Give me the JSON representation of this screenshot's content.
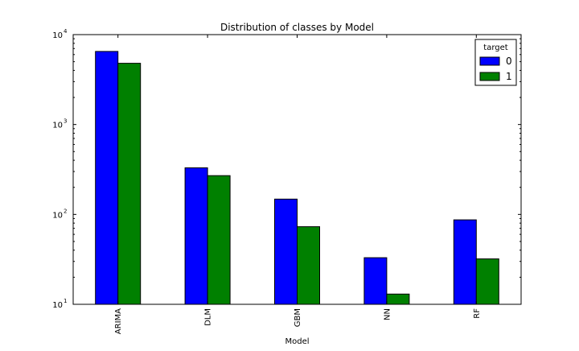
{
  "chart_data": {
    "type": "bar",
    "title": "Distribution of classes by Model",
    "xlabel": "Model",
    "ylabel": "",
    "categories": [
      "ARIMA",
      "DLM",
      "GBM",
      "NN",
      "RF"
    ],
    "series": [
      {
        "name": "0",
        "values": [
          6500,
          330,
          148,
          33,
          87
        ],
        "color": "#0000ff"
      },
      {
        "name": "1",
        "values": [
          4800,
          270,
          73,
          13,
          32
        ],
        "color": "#008000"
      }
    ],
    "y_scale": "log",
    "ylim": [
      10,
      10000
    ],
    "y_ticks": [
      {
        "value": 10,
        "base": "10",
        "exp": "1"
      },
      {
        "value": 100,
        "base": "10",
        "exp": "2"
      },
      {
        "value": 1000,
        "base": "10",
        "exp": "3"
      },
      {
        "value": 10000,
        "base": "10",
        "exp": "4"
      }
    ],
    "grid": false,
    "legend": {
      "title": "target",
      "placement": "top-right"
    }
  }
}
